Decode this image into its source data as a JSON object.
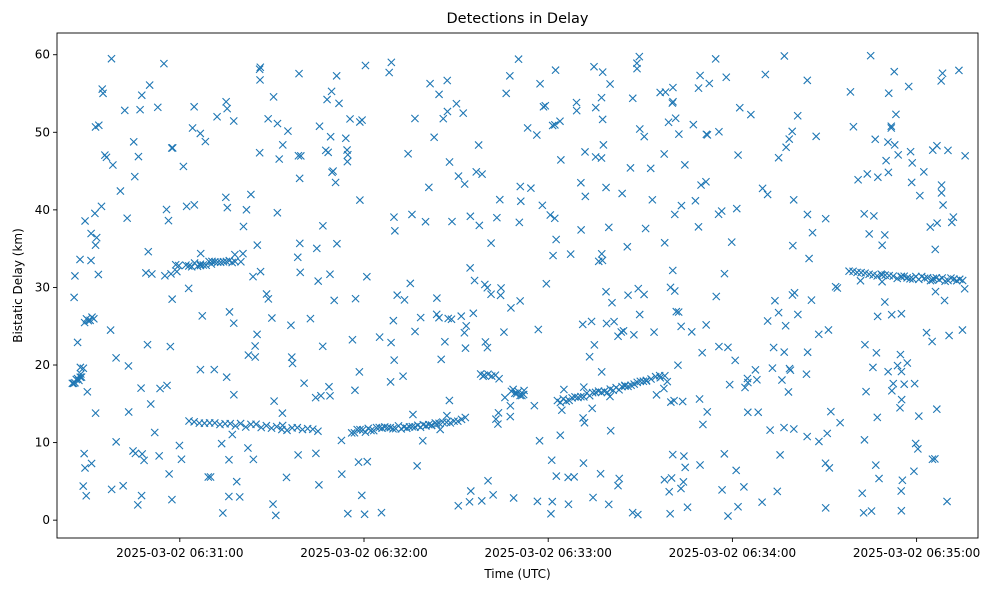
{
  "chart_data": {
    "type": "scatter",
    "title": "Detections in Delay",
    "xlabel": "Time (UTC)",
    "ylabel": "Bistatic Delay (km)",
    "marker": "x",
    "color": "#1f77b4",
    "xlim": [
      "2025-03-02 06:30:20",
      "2025-03-02 06:35:20"
    ],
    "ylim": [
      -2.3,
      62.8
    ],
    "grid": false,
    "x_ticks": [
      "2025-03-02 06:31:00",
      "2025-03-02 06:32:00",
      "2025-03-02 06:33:00",
      "2025-03-02 06:34:00",
      "2025-03-02 06:35:00"
    ],
    "y_ticks": [
      0,
      10,
      20,
      30,
      40,
      50,
      60
    ],
    "tracks": [
      {
        "x": [
          "2025-03-02 06:30:25",
          "2025-03-02 06:30:28"
        ],
        "y": [
          17.8,
          18.3
        ],
        "n": 8
      },
      {
        "x": [
          "2025-03-02 06:30:29",
          "2025-03-02 06:30:32"
        ],
        "y": [
          25.7,
          26.2
        ],
        "n": 6
      },
      {
        "x": [
          "2025-03-02 06:31:02",
          "2025-03-02 06:31:18"
        ],
        "y": [
          32.8,
          33.5
        ],
        "n": 18
      },
      {
        "x": [
          "2025-03-02 06:31:03",
          "2025-03-02 06:31:45"
        ],
        "y": [
          12.8,
          11.5
        ],
        "n": 26
      },
      {
        "x": [
          "2025-03-02 06:31:56",
          "2025-03-02 06:32:22"
        ],
        "y": [
          11.4,
          12.3
        ],
        "n": 30
      },
      {
        "x": [
          "2025-03-02 06:32:22",
          "2025-03-02 06:32:33"
        ],
        "y": [
          12.4,
          13.0
        ],
        "n": 10
      },
      {
        "x": [
          "2025-03-02 06:32:38",
          "2025-03-02 06:32:44"
        ],
        "y": [
          19.0,
          18.3
        ],
        "n": 6
      },
      {
        "x": [
          "2025-03-02 06:32:48",
          "2025-03-02 06:32:52"
        ],
        "y": [
          16.8,
          16.0
        ],
        "n": 8
      },
      {
        "x": [
          "2025-03-02 06:33:03",
          "2025-03-02 06:33:25"
        ],
        "y": [
          15.3,
          17.2
        ],
        "n": 24
      },
      {
        "x": [
          "2025-03-02 06:33:25",
          "2025-03-02 06:33:32"
        ],
        "y": [
          17.2,
          17.9
        ],
        "n": 8
      },
      {
        "x": [
          "2025-03-02 06:33:32",
          "2025-03-02 06:33:38"
        ],
        "y": [
          18.0,
          18.8
        ],
        "n": 5
      },
      {
        "x": [
          "2025-03-02 06:34:38",
          "2025-03-02 06:34:55"
        ],
        "y": [
          32.0,
          31.2
        ],
        "n": 14
      },
      {
        "x": [
          "2025-03-02 06:34:55",
          "2025-03-02 06:35:15"
        ],
        "y": [
          31.3,
          30.9
        ],
        "n": 22
      }
    ],
    "clutter": {
      "count": 620,
      "x_range": [
        "2025-03-02 06:30:25",
        "2025-03-02 06:35:17"
      ],
      "y_range": [
        0.5,
        60
      ]
    }
  }
}
